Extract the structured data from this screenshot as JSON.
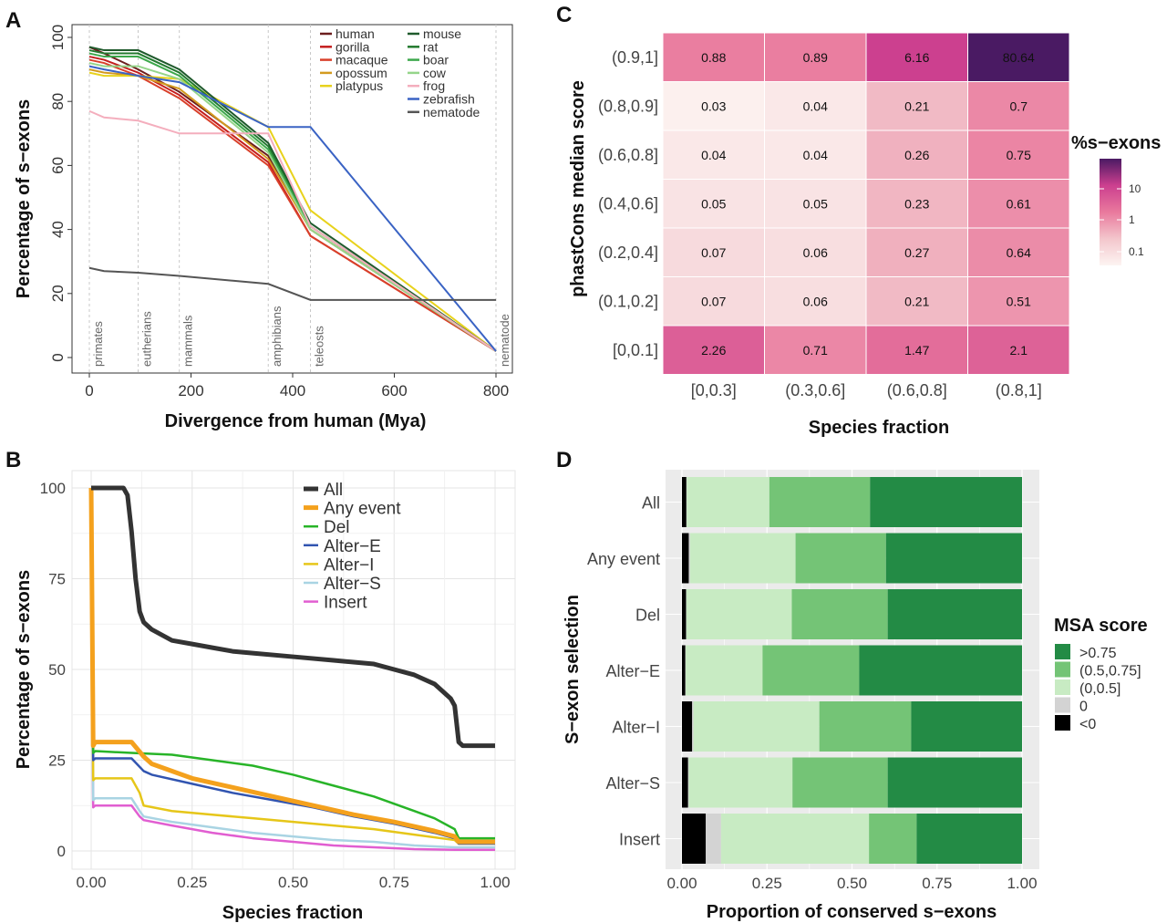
{
  "panels": {
    "A": "A",
    "B": "B",
    "C": "C",
    "D": "D"
  },
  "chart_data": [
    {
      "panel": "A",
      "type": "line",
      "xlabel": "Divergence from human (Mya)",
      "ylabel": "Percentage of s−exons",
      "xlim": [
        0,
        800
      ],
      "ylim": [
        0,
        100
      ],
      "xticks": [
        0,
        200,
        400,
        600,
        800
      ],
      "yticks": [
        0,
        20,
        40,
        60,
        80,
        100
      ],
      "grid": true,
      "legend_position": "top-right",
      "x": [
        0,
        29,
        96,
        177,
        352,
        435,
        800
      ],
      "events": [
        {
          "label": "primates",
          "x": 0
        },
        {
          "label": "eutherians",
          "x": 96
        },
        {
          "label": "mammals",
          "x": 177
        },
        {
          "label": "amphibians",
          "x": 352
        },
        {
          "label": "teleosts",
          "x": 435
        },
        {
          "label": "nematode",
          "x": 800
        }
      ],
      "series": [
        {
          "name": "human",
          "color": "#6b1d1d",
          "values": [
            97,
            95,
            90,
            83,
            63,
            40,
            2
          ]
        },
        {
          "name": "gorilla",
          "color": "#c41e1e",
          "values": [
            94,
            93,
            89,
            82,
            61,
            38,
            2
          ]
        },
        {
          "name": "macaque",
          "color": "#d9402a",
          "values": [
            93,
            92,
            88,
            81,
            60,
            38,
            2
          ]
        },
        {
          "name": "opossum",
          "color": "#d39a1f",
          "values": [
            90,
            89,
            88,
            84,
            62,
            40,
            2
          ]
        },
        {
          "name": "platypus",
          "color": "#e8d21c",
          "values": [
            89,
            88,
            88,
            87,
            72,
            46,
            2
          ]
        },
        {
          "name": "mouse",
          "color": "#1f5a2c",
          "values": [
            97,
            96,
            96,
            90,
            67,
            42,
            2
          ]
        },
        {
          "name": "rat",
          "color": "#237a2f",
          "values": [
            96,
            95,
            95,
            89,
            66,
            41,
            2
          ]
        },
        {
          "name": "boar",
          "color": "#3da84c",
          "values": [
            95,
            94,
            94,
            88,
            65,
            41,
            2
          ]
        },
        {
          "name": "cow",
          "color": "#95d58a",
          "values": [
            92,
            91,
            91,
            87,
            64,
            40,
            2
          ]
        },
        {
          "name": "frog",
          "color": "#f4aebd",
          "values": [
            77,
            75,
            74,
            70,
            70,
            41,
            2
          ]
        },
        {
          "name": "zebrafish",
          "color": "#3a63c4",
          "values": [
            91,
            90,
            88,
            86,
            72,
            72,
            2
          ]
        },
        {
          "name": "nematode",
          "color": "#555555",
          "values": [
            28,
            27,
            26.5,
            25.5,
            23,
            18,
            18
          ]
        }
      ]
    },
    {
      "panel": "B",
      "type": "line",
      "xlabel": "Species fraction",
      "ylabel": "Percentage of s−exons",
      "xlim": [
        0,
        1
      ],
      "ylim": [
        0,
        100
      ],
      "xtick_labels": [
        "0.00",
        "0.25",
        "0.50",
        "0.75",
        "1.00"
      ],
      "ytick_labels": [
        "0",
        "25",
        "50",
        "75",
        "100"
      ],
      "grid": true,
      "legend_position": "top-right",
      "series": [
        {
          "name": "All",
          "color": "#333333",
          "width": 5,
          "x": [
            0,
            0.08,
            0.09,
            0.1,
            0.11,
            0.12,
            0.13,
            0.15,
            0.2,
            0.25,
            0.3,
            0.35,
            0.4,
            0.5,
            0.6,
            0.65,
            0.7,
            0.75,
            0.8,
            0.85,
            0.88,
            0.89,
            0.9,
            0.91,
            0.92,
            0.95,
            1.0
          ],
          "y": [
            100,
            100,
            98,
            88,
            75,
            66,
            63,
            61,
            58,
            57,
            56,
            55,
            54.5,
            53.5,
            52.5,
            52,
            51.5,
            50,
            48.5,
            46,
            43,
            42,
            40,
            30,
            29,
            29,
            29
          ]
        },
        {
          "name": "Any event",
          "color": "#f4a11d",
          "width": 5,
          "x": [
            0,
            0.005,
            0.01,
            0.1,
            0.13,
            0.15,
            0.25,
            0.35,
            0.45,
            0.55,
            0.65,
            0.75,
            0.85,
            0.9,
            0.91,
            1.0
          ],
          "y": [
            100,
            29,
            30,
            30,
            26,
            24,
            20,
            17.5,
            15,
            12.5,
            10,
            8,
            5.5,
            4,
            2.5,
            2.5
          ]
        },
        {
          "name": "Del",
          "color": "#28b428",
          "width": 2.5,
          "x": [
            0,
            0.005,
            0.01,
            0.1,
            0.2,
            0.3,
            0.4,
            0.5,
            0.6,
            0.7,
            0.8,
            0.85,
            0.9,
            0.91,
            1.0
          ],
          "y": [
            100,
            27,
            27.5,
            27,
            26.5,
            25,
            23.5,
            21,
            18,
            15,
            11,
            9,
            6,
            3.5,
            3.5
          ]
        },
        {
          "name": "Alter−E",
          "color": "#3154b0",
          "width": 2.5,
          "x": [
            0,
            0.005,
            0.01,
            0.1,
            0.13,
            0.15,
            0.25,
            0.35,
            0.45,
            0.55,
            0.65,
            0.75,
            0.85,
            0.9,
            0.91,
            1.0
          ],
          "y": [
            100,
            25,
            25.5,
            25.5,
            22,
            21,
            18.5,
            16,
            14,
            12,
            9.5,
            7.5,
            5,
            3.5,
            2,
            2
          ]
        },
        {
          "name": "Alter−I",
          "color": "#e6c619",
          "width": 2.5,
          "x": [
            0,
            0.005,
            0.01,
            0.1,
            0.12,
            0.13,
            0.2,
            0.3,
            0.4,
            0.5,
            0.6,
            0.7,
            0.8,
            0.9,
            0.91,
            1.0
          ],
          "y": [
            100,
            19.5,
            20,
            20,
            16,
            12.5,
            11,
            10,
            9,
            8,
            7,
            6,
            4.5,
            3,
            2,
            2
          ]
        },
        {
          "name": "Alter−S",
          "color": "#a9d4e3",
          "width": 2.5,
          "x": [
            0,
            0.005,
            0.01,
            0.1,
            0.12,
            0.13,
            0.2,
            0.3,
            0.4,
            0.5,
            0.6,
            0.7,
            0.8,
            0.9,
            1.0
          ],
          "y": [
            100,
            14,
            14.5,
            14.5,
            11,
            9.5,
            8,
            6.5,
            5,
            4,
            3,
            2.5,
            1.5,
            1,
            1
          ]
        },
        {
          "name": "Insert",
          "color": "#e15ed1",
          "width": 2.5,
          "x": [
            0,
            0.005,
            0.01,
            0.1,
            0.12,
            0.13,
            0.2,
            0.3,
            0.4,
            0.5,
            0.6,
            0.7,
            0.8,
            0.9,
            1.0
          ],
          "y": [
            100,
            12,
            12.5,
            12.5,
            9.5,
            8.5,
            7,
            5,
            3.5,
            2.5,
            1.5,
            1,
            0.5,
            0.3,
            0.3
          ]
        }
      ]
    },
    {
      "panel": "C",
      "type": "heatmap",
      "xlabel": "Species fraction",
      "ylabel": "phastCons median score",
      "x_categories": [
        "[0,0.3]",
        "(0.3,0.6]",
        "(0.6,0.8]",
        "(0.8,1]"
      ],
      "y_categories": [
        "(0.9,1]",
        "(0.8,0.9]",
        "(0.6,0.8]",
        "(0.4,0.6]",
        "(0.2,0.4]",
        "(0.1,0.2]",
        "[0,0.1]"
      ],
      "values": [
        [
          "0.88",
          "0.89",
          "6.16",
          "80.64"
        ],
        [
          "0.03",
          "0.04",
          "0.21",
          "0.7"
        ],
        [
          "0.04",
          "0.04",
          "0.26",
          "0.75"
        ],
        [
          "0.05",
          "0.05",
          "0.23",
          "0.61"
        ],
        [
          "0.07",
          "0.06",
          "0.27",
          "0.64"
        ],
        [
          "0.07",
          "0.06",
          "0.21",
          "0.51"
        ],
        [
          "2.26",
          "0.71",
          "1.47",
          "2.1"
        ]
      ],
      "legend_title": "%s−exons",
      "legend_ticks": [
        "10",
        "1",
        "0.1"
      ],
      "scale": "log",
      "colors": [
        "#fdf4f2",
        "#f3c6cc",
        "#e9799d",
        "#cc3f8f",
        "#4a1a63"
      ]
    },
    {
      "panel": "D",
      "type": "bar",
      "orientation": "horizontal",
      "stacked": true,
      "xlabel": "Proportion of conserved s−exons",
      "ylabel": "S−exon selection",
      "xlim": [
        0,
        1
      ],
      "xtick_labels": [
        "0.00",
        "0.25",
        "0.50",
        "0.75",
        "1.00"
      ],
      "categories": [
        "All",
        "Any event",
        "Del",
        "Alter−E",
        "Alter−I",
        "Alter−S",
        "Insert"
      ],
      "legend_title": "MSA score",
      "legend_position": "right",
      "series": [
        {
          "name": "<0",
          "color": "#000000",
          "values": [
            0.013,
            0.02,
            0.012,
            0.01,
            0.03,
            0.018,
            0.07
          ]
        },
        {
          "name": "0",
          "color": "#d3d3d3",
          "values": [
            0.001,
            0.004,
            0.001,
            0.001,
            0.004,
            0.002,
            0.045
          ]
        },
        {
          "name": "(0,0.5]",
          "color": "#c8ebc3",
          "values": [
            0.243,
            0.31,
            0.31,
            0.226,
            0.37,
            0.305,
            0.435
          ]
        },
        {
          "name": "(0.5,0.75]",
          "color": "#74c476",
          "values": [
            0.296,
            0.266,
            0.282,
            0.284,
            0.27,
            0.28,
            0.14
          ]
        },
        {
          "name": ">0.75",
          "color": "#238b45",
          "values": [
            0.447,
            0.4,
            0.395,
            0.479,
            0.326,
            0.395,
            0.31
          ]
        }
      ],
      "legend_order": [
        ">0.75",
        "(0.5,0.75]",
        "(0,0.5]",
        "0",
        "<0"
      ]
    }
  ]
}
